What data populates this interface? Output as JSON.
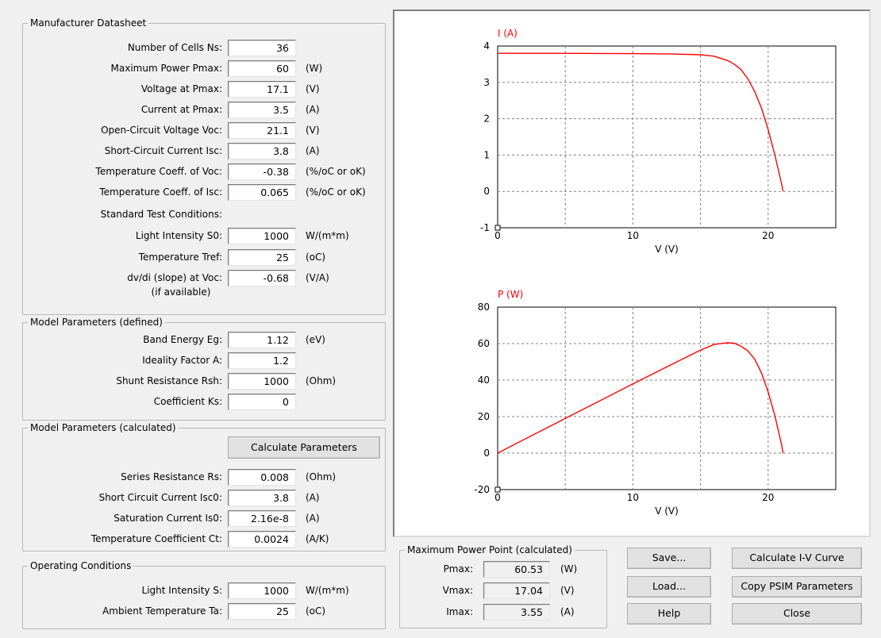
{
  "datasheet": {
    "title": "Manufacturer Datasheet",
    "rows": [
      {
        "label": "Number of Cells Ns:",
        "value": "36",
        "unit": ""
      },
      {
        "label": "Maximum Power Pmax:",
        "value": "60",
        "unit": "(W)"
      },
      {
        "label": "Voltage at Pmax:",
        "value": "17.1",
        "unit": "(V)"
      },
      {
        "label": "Current at Pmax:",
        "value": "3.5",
        "unit": "(A)"
      },
      {
        "label": "Open-Circuit Voltage Voc:",
        "value": "21.1",
        "unit": "(V)"
      },
      {
        "label": "Short-Circuit Current Isc:",
        "value": "3.8",
        "unit": "(A)"
      },
      {
        "label": "Temperature Coeff. of Voc:",
        "value": "-0.38",
        "unit": "(%/oC or oK)"
      },
      {
        "label": "Temperature Coeff. of Isc:",
        "value": "0.065",
        "unit": "(%/oC or oK)"
      }
    ],
    "stc_label": "Standard Test Conditions:",
    "stc_rows": [
      {
        "label": "Light Intensity S0:",
        "value": "1000",
        "unit": "W/(m*m)"
      },
      {
        "label": "Temperature Tref:",
        "value": "25",
        "unit": "(oC)"
      },
      {
        "label": "dv/di (slope) at Voc:",
        "value": "-0.68",
        "unit": "(V/A)"
      }
    ],
    "slope_note": "(if available)"
  },
  "model_defined": {
    "title": "Model Parameters (defined)",
    "rows": [
      {
        "label": "Band Energy Eg:",
        "value": "1.12",
        "unit": "(eV)"
      },
      {
        "label": "Ideality Factor A:",
        "value": "1.2",
        "unit": ""
      },
      {
        "label": "Shunt Resistance Rsh:",
        "value": "1000",
        "unit": "(Ohm)"
      },
      {
        "label": "Coefficient Ks:",
        "value": "0",
        "unit": ""
      }
    ]
  },
  "model_calc": {
    "title": "Model Parameters (calculated)",
    "button": "Calculate Parameters",
    "rows": [
      {
        "label": "Series Resistance Rs:",
        "value": "0.008",
        "unit": "(Ohm)"
      },
      {
        "label": "Short Circuit Current Isc0:",
        "value": "3.8",
        "unit": "(A)"
      },
      {
        "label": "Saturation Current Is0:",
        "value": "2.16e-8",
        "unit": "(A)"
      },
      {
        "label": "Temperature Coefficient Ct:",
        "value": "0.0024",
        "unit": "(A/K)"
      }
    ]
  },
  "operating": {
    "title": "Operating Conditions",
    "rows": [
      {
        "label": "Light Intensity S:",
        "value": "1000",
        "unit": "W/(m*m)"
      },
      {
        "label": "Ambient Temperature Ta:",
        "value": "25",
        "unit": "(oC)"
      }
    ]
  },
  "mpp": {
    "title": "Maximum Power Point (calculated)",
    "rows": [
      {
        "label": "Pmax:",
        "value": "60.53",
        "unit": "(W)"
      },
      {
        "label": "Vmax:",
        "value": "17.04",
        "unit": "(V)"
      },
      {
        "label": "Imax:",
        "value": "3.55",
        "unit": "(A)"
      }
    ]
  },
  "buttons": {
    "save": "Save...",
    "load": "Load...",
    "help": "Help",
    "calc_iv": "Calculate I-V Curve",
    "copy_psim": "Copy PSIM Parameters",
    "close": "Close"
  },
  "colors": {
    "curve": "#ff0000",
    "grid": "#808080"
  },
  "chart_data": [
    {
      "type": "line",
      "ylabel": "I (A)",
      "xlabel": "V (V)",
      "xlim": [
        0,
        25
      ],
      "ylim": [
        -1,
        4
      ],
      "xticks": [
        0,
        10,
        20
      ],
      "yticks": [
        -1,
        0,
        1,
        2,
        3,
        4
      ],
      "grid": true,
      "series": [
        {
          "x": [
            0,
            5,
            10,
            13,
            15,
            16,
            17,
            17.5,
            18,
            18.5,
            19,
            19.5,
            20,
            20.5,
            21,
            21.1
          ],
          "y": [
            3.8,
            3.8,
            3.79,
            3.78,
            3.76,
            3.72,
            3.6,
            3.5,
            3.35,
            3.1,
            2.75,
            2.3,
            1.7,
            1.0,
            0.2,
            0
          ]
        }
      ]
    },
    {
      "type": "line",
      "ylabel": "P (W)",
      "xlabel": "V (V)",
      "xlim": [
        0,
        25
      ],
      "ylim": [
        -20,
        80
      ],
      "xticks": [
        0,
        10,
        20
      ],
      "yticks": [
        -20,
        0,
        20,
        40,
        60,
        80
      ],
      "grid": true,
      "series": [
        {
          "x": [
            0,
            5,
            10,
            13,
            15,
            16,
            17,
            17.5,
            18,
            18.5,
            19,
            19.5,
            20,
            20.5,
            21,
            21.1
          ],
          "y": [
            0,
            19,
            37.9,
            49.1,
            56.4,
            59.5,
            60.5,
            60.2,
            58.5,
            56.0,
            51.5,
            44.0,
            33.5,
            20.5,
            4.5,
            0
          ]
        }
      ]
    }
  ]
}
